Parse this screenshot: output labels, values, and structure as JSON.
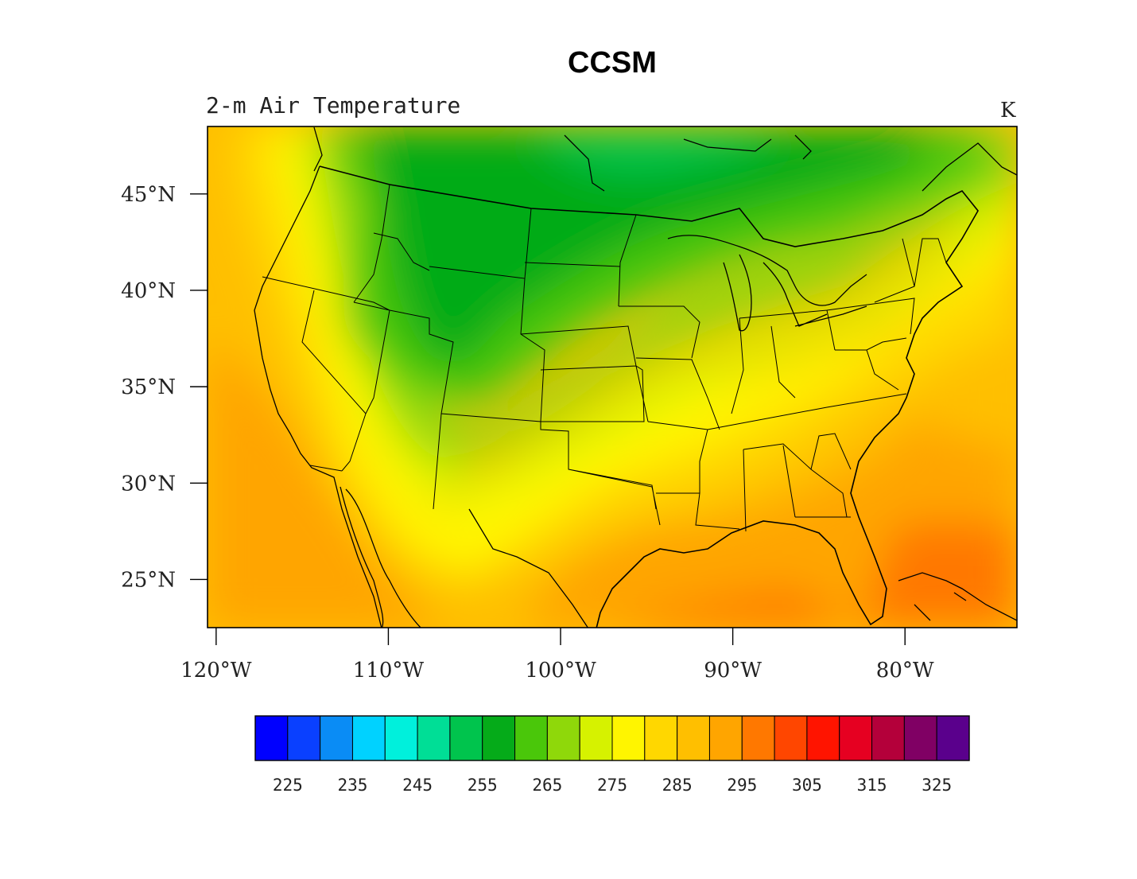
{
  "figure": {
    "title": "CCSM",
    "subtitle": "2-m Air Temperature",
    "units": "K"
  },
  "map": {
    "region": "Contiguous United States",
    "lon_range": [
      -120.5,
      -73.5
    ],
    "lat_range": [
      22.5,
      48.5
    ],
    "lat_ticks": [
      {
        "value": 45,
        "label": "45°N"
      },
      {
        "value": 40,
        "label": "40°N"
      },
      {
        "value": 35,
        "label": "35°N"
      },
      {
        "value": 30,
        "label": "30°N"
      },
      {
        "value": 25,
        "label": "25°N"
      }
    ],
    "lon_ticks": [
      {
        "value": -120,
        "label": "120°W"
      },
      {
        "value": -110,
        "label": "110°W"
      },
      {
        "value": -100,
        "label": "100°W"
      },
      {
        "value": -90,
        "label": "90°W"
      },
      {
        "value": -80,
        "label": "80°W"
      }
    ]
  },
  "colorbar": {
    "colors": [
      "#0000ff",
      "#0a40ff",
      "#0a8cf5",
      "#00d2ff",
      "#00f0dc",
      "#00de96",
      "#00c44d",
      "#05ab19",
      "#4ac70a",
      "#8fd80a",
      "#d6f200",
      "#fff500",
      "#ffd700",
      "#ffbf00",
      "#ffa500",
      "#ff7800",
      "#ff4600",
      "#ff1400",
      "#e60021",
      "#b4003a",
      "#800064",
      "#5a008c"
    ],
    "labels": [
      "225",
      "235",
      "245",
      "255",
      "265",
      "275",
      "285",
      "295",
      "305",
      "315",
      "325"
    ]
  }
}
